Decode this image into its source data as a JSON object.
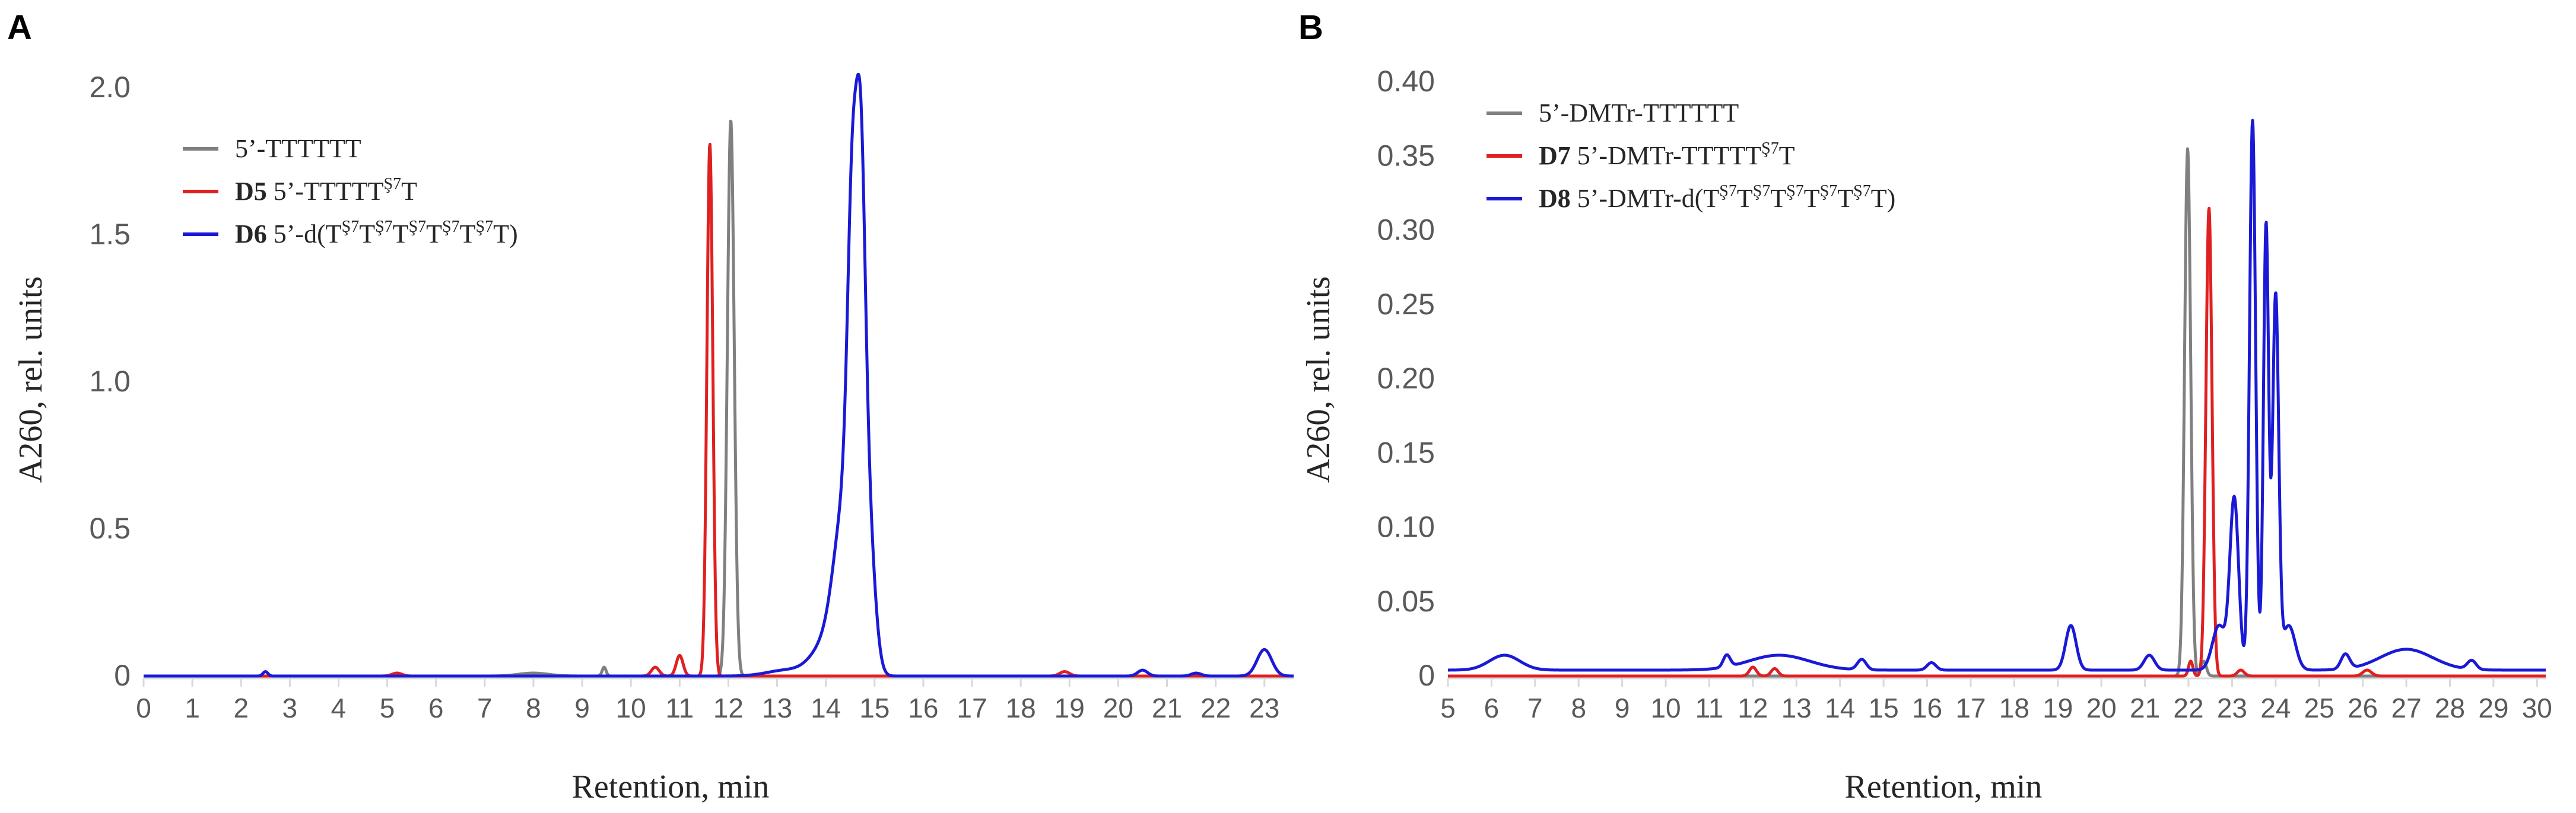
{
  "panels": [
    {
      "letter": "A",
      "title": "",
      "xlabel": "Retention, min",
      "ylabel": "A260, rel. units",
      "xlim": [
        0,
        23.6
      ],
      "ylim": [
        -0.02,
        2.0
      ],
      "xticks": [
        "0",
        "1",
        "2",
        "3",
        "4",
        "5",
        "6",
        "7",
        "8",
        "9",
        "10",
        "11",
        "12",
        "13",
        "14",
        "15",
        "16",
        "17",
        "18",
        "19",
        "20",
        "21",
        "22",
        "23"
      ],
      "yticks": [
        "0",
        "0.5",
        "1.0",
        "1.5",
        "2.0"
      ],
      "legend": [
        {
          "bold": "",
          "label": "5’-TTTTTT",
          "sup": "",
          "color": "#808080"
        },
        {
          "bold": "D5",
          "label": "5’-TTTTT",
          "sup": "Ş7",
          "tail": "T",
          "color": "#e02020"
        },
        {
          "bold": "D6",
          "label": "5’-d(T",
          "sup": "Ş7",
          "tail": "T",
          "repeat": 5,
          "close": ")",
          "color": "#1a1ad6"
        }
      ]
    },
    {
      "letter": "B",
      "title": "",
      "xlabel": "Retention, min",
      "ylabel": "A260, rel. units",
      "xlim": [
        5,
        30.2
      ],
      "ylim": [
        -0.004,
        0.4
      ],
      "xticks": [
        "5",
        "6",
        "7",
        "8",
        "9",
        "10",
        "11",
        "12",
        "13",
        "14",
        "15",
        "16",
        "17",
        "18",
        "19",
        "20",
        "21",
        "22",
        "23",
        "24",
        "25",
        "26",
        "27",
        "28",
        "29",
        "30"
      ],
      "yticks": [
        "0",
        "0.05",
        "0.10",
        "0.15",
        "0.20",
        "0.25",
        "0.30",
        "0.35",
        "0.40"
      ],
      "legend": [
        {
          "bold": "",
          "label": "5’-DMTr-TTTTTT",
          "sup": "",
          "color": "#808080"
        },
        {
          "bold": "D7",
          "label": "5’-DMTr-TTTTT",
          "sup": "Ş7",
          "tail": "T",
          "color": "#e02020"
        },
        {
          "bold": "D8",
          "label": "5’-DMTr-d(T",
          "sup": "Ş7",
          "tail": "T",
          "repeat": 5,
          "close": ")",
          "color": "#1a1ad6"
        }
      ]
    }
  ],
  "chart_data": [
    {
      "type": "line",
      "panel": "A",
      "xlabel": "Retention, min",
      "ylabel": "A260, rel. units",
      "xlim": [
        0,
        23.6
      ],
      "ylim": [
        0,
        2.0
      ],
      "grid": false,
      "legend_position": "upper-left",
      "series": [
        {
          "name": "5’-TTTTTT",
          "color": "#808080",
          "baseline": 0.0,
          "peaks": [
            {
              "x": 12.05,
              "height": 1.89,
              "width": 0.07
            },
            {
              "x": 9.45,
              "height": 0.03,
              "width": 0.04
            },
            {
              "x": 8.0,
              "height": 0.01,
              "width": 0.3
            }
          ]
        },
        {
          "name": "5’-TTTTTŞ7T",
          "color": "#e02020",
          "baseline": 0.0,
          "peaks": [
            {
              "x": 11.62,
              "height": 1.81,
              "width": 0.06
            },
            {
              "x": 11.0,
              "height": 0.07,
              "width": 0.07
            },
            {
              "x": 10.5,
              "height": 0.03,
              "width": 0.08
            },
            {
              "x": 5.2,
              "height": 0.01,
              "width": 0.1
            },
            {
              "x": 18.9,
              "height": 0.015,
              "width": 0.1
            }
          ]
        },
        {
          "name": "5’-d(TŞ7TŞ7TŞ7TŞ7TŞ7T)",
          "color": "#1a1ad6",
          "baseline": 0.0,
          "peaks": [
            {
              "x": 14.55,
              "height": 1.17,
              "width": 0.1
            },
            {
              "x": 14.72,
              "height": 1.13,
              "width": 0.09
            },
            {
              "x": 14.4,
              "height": 0.55,
              "width": 0.22
            },
            {
              "x": 14.85,
              "height": 0.55,
              "width": 0.14
            },
            {
              "x": 14.0,
              "height": 0.1,
              "width": 0.3
            },
            {
              "x": 13.2,
              "height": 0.02,
              "width": 0.4
            },
            {
              "x": 2.5,
              "height": 0.015,
              "width": 0.05
            },
            {
              "x": 20.5,
              "height": 0.02,
              "width": 0.1
            },
            {
              "x": 21.6,
              "height": 0.01,
              "width": 0.1
            },
            {
              "x": 23.0,
              "height": 0.09,
              "width": 0.15
            }
          ]
        }
      ]
    },
    {
      "type": "line",
      "panel": "B",
      "xlabel": "Retention, min",
      "ylabel": "A260, rel. units",
      "xlim": [
        5,
        30.2
      ],
      "ylim": [
        0,
        0.4
      ],
      "grid": false,
      "legend_position": "upper-left",
      "series": [
        {
          "name": "5’-DMTr-TTTTTT",
          "color": "#808080",
          "baseline": 0.0,
          "peaks": [
            {
              "x": 21.98,
              "height": 0.355,
              "width": 0.07
            },
            {
              "x": 22.35,
              "height": 0.01,
              "width": 0.06
            }
          ]
        },
        {
          "name": "5’-DMTr-TTTTTŞ7T",
          "color": "#e02020",
          "baseline": 0.0,
          "peaks": [
            {
              "x": 22.47,
              "height": 0.315,
              "width": 0.07
            },
            {
              "x": 22.05,
              "height": 0.01,
              "width": 0.05
            },
            {
              "x": 12.0,
              "height": 0.006,
              "width": 0.08
            },
            {
              "x": 12.5,
              "height": 0.005,
              "width": 0.08
            },
            {
              "x": 23.2,
              "height": 0.004,
              "width": 0.08
            },
            {
              "x": 26.1,
              "height": 0.004,
              "width": 0.1
            }
          ]
        },
        {
          "name": "5’-DMTr-d(TŞ7TŞ7TŞ7TŞ7TŞ7T)",
          "color": "#1a1ad6",
          "baseline": 0.004,
          "peaks": [
            {
              "x": 23.47,
              "height": 0.37,
              "width": 0.07
            },
            {
              "x": 23.78,
              "height": 0.3,
              "width": 0.06
            },
            {
              "x": 24.0,
              "height": 0.25,
              "width": 0.07
            },
            {
              "x": 23.05,
              "height": 0.115,
              "width": 0.1
            },
            {
              "x": 22.7,
              "height": 0.03,
              "width": 0.15
            },
            {
              "x": 24.3,
              "height": 0.03,
              "width": 0.15
            },
            {
              "x": 19.3,
              "height": 0.03,
              "width": 0.12
            },
            {
              "x": 6.3,
              "height": 0.01,
              "width": 0.35
            },
            {
              "x": 12.6,
              "height": 0.01,
              "width": 0.7
            },
            {
              "x": 11.4,
              "height": 0.008,
              "width": 0.08
            },
            {
              "x": 14.5,
              "height": 0.007,
              "width": 0.1
            },
            {
              "x": 16.1,
              "height": 0.005,
              "width": 0.1
            },
            {
              "x": 21.1,
              "height": 0.01,
              "width": 0.12
            },
            {
              "x": 25.6,
              "height": 0.01,
              "width": 0.1
            },
            {
              "x": 27.0,
              "height": 0.014,
              "width": 0.6
            },
            {
              "x": 28.5,
              "height": 0.006,
              "width": 0.1
            }
          ]
        }
      ]
    }
  ]
}
